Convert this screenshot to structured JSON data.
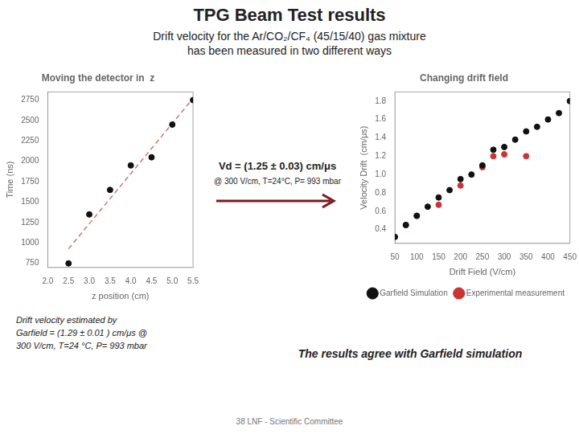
{
  "title": "TPG Beam Test results",
  "subtitle": [
    "Drift velocity  for the Ar/CO₂/CF₄ (45/15/40) gas mixture",
    "has been measured in two different ways"
  ],
  "annotations": [
    "Drift velocity estimated by",
    "Garfield = (1.29 ± 0.01 ) cm/μs @",
    "300 V/cm, T=24 °C, P= 993 mbar",
    "38 LNF - Scientific Committee",
    "The results agree with Garfield simulation"
  ],
  "chart_data": [
    {
      "type": "scatter",
      "title": "Moving the detector in  z",
      "x_label": "z position (cm)",
      "y_label": "Time (ns)",
      "annotations": [
        "Vd = (1.25 ± 0.03) cm/μs",
        "@ 300 V/cm, T=24°C, P= 993 mbar"
      ],
      "series": [
        {
          "type": "scatter",
          "color": "#111111",
          "marker": "circle",
          "x": [
            2.5,
            3.0,
            3.5,
            4.0,
            4.5,
            5.0,
            5.5
          ],
          "values": [
            750,
            1350,
            1650,
            1950,
            2050,
            2450,
            2750
          ]
        },
        {
          "type": "line",
          "color": "#cc7777",
          "line_style": "dashed",
          "x": [
            2.5,
            3.0,
            3.5,
            4.0,
            4.5,
            5.0,
            5.5
          ],
          "values": [
            928.5714,
            1235.7143,
            1542.8571,
            1850,
            2157.1429,
            2464.2857,
            2771.4286
          ]
        }
      ],
      "xlim": [
        2.0,
        5.5
      ],
      "xticks": [
        {
          "value": 2,
          "label": "2.0"
        },
        2.5,
        {
          "value": 3,
          "label": "3.0"
        },
        3.5,
        {
          "value": 4,
          "label": "4.0"
        },
        4.5,
        {
          "value": 5,
          "label": "5.0"
        },
        5.5
      ],
      "ylim": [
        700,
        2850
      ],
      "yticks": [
        750,
        1000,
        1250,
        1500,
        1750,
        2000,
        2250,
        2500,
        2750
      ],
      "grid": false
    },
    {
      "type": "scatter",
      "title": "Changing drift field",
      "x_label": "Drift Field (V/cm)",
      "y_label": "Velocity Drift  (cm/μs)",
      "series": [
        {
          "name": "Garfield Simulation",
          "color": "#111111",
          "marker": "circle",
          "x": [
            50,
            75,
            100,
            125,
            150,
            175,
            200,
            225,
            250,
            275,
            300,
            325,
            350,
            375,
            400,
            425,
            450
          ],
          "values": [
            0.32,
            0.45,
            0.55,
            0.65,
            0.75,
            0.83,
            0.95,
            1.0,
            1.1,
            1.27,
            1.3,
            1.38,
            1.47,
            1.52,
            1.6,
            1.67,
            1.8
          ]
        },
        {
          "name": "Experimental measurement",
          "color": "#cc3333",
          "marker": "circle",
          "x": [
            75,
            100,
            150,
            200,
            250,
            275,
            300,
            350
          ],
          "values": [
            0.45,
            0.55,
            0.67,
            0.88,
            1.08,
            1.2,
            1.22,
            1.2
          ]
        }
      ],
      "xlim": [
        50,
        450
      ],
      "xticks": [
        50,
        100,
        150,
        200,
        250,
        300,
        350,
        400,
        450
      ],
      "ylim": [
        0.25,
        1.9
      ],
      "yticks": [
        0.4,
        0.6,
        0.8,
        {
          "value": 1.0,
          "label": "1.0"
        },
        1.2,
        1.4,
        1.6,
        1.8
      ],
      "legend": "lower right",
      "grid": false
    }
  ]
}
